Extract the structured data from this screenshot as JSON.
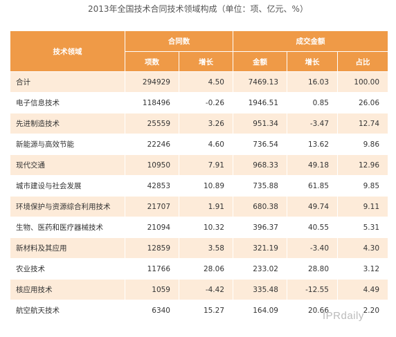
{
  "title": "2013年全国技术合同技术领域构成（单位：项、亿元、%）",
  "headers": {
    "field": "技术领域",
    "contracts_group": "合同数",
    "amount_group": "成交金额",
    "sub": [
      "项数",
      "增长",
      "金额",
      "增长",
      "占比"
    ]
  },
  "rows": [
    {
      "field": "合计",
      "count": "294929",
      "count_growth": "4.50",
      "amount": "7469.13",
      "amount_growth": "16.03",
      "share": "100.00"
    },
    {
      "field": "电子信息技术",
      "count": "118496",
      "count_growth": "-0.26",
      "amount": "1946.51",
      "amount_growth": "0.85",
      "share": "26.06"
    },
    {
      "field": "先进制造技术",
      "count": "25559",
      "count_growth": "3.26",
      "amount": "951.34",
      "amount_growth": "-3.47",
      "share": "12.74"
    },
    {
      "field": "新能源与高效节能",
      "count": "22246",
      "count_growth": "4.60",
      "amount": "736.54",
      "amount_growth": "13.62",
      "share": "9.86"
    },
    {
      "field": "现代交通",
      "count": "10950",
      "count_growth": "7.91",
      "amount": "968.33",
      "amount_growth": "49.18",
      "share": "12.96"
    },
    {
      "field": "城市建设与社会发展",
      "count": "42853",
      "count_growth": "10.89",
      "amount": "735.88",
      "amount_growth": "61.85",
      "share": "9.85"
    },
    {
      "field": "环境保护与资源综合利用技术",
      "count": "21707",
      "count_growth": "1.91",
      "amount": "680.38",
      "amount_growth": "49.74",
      "share": "9.11"
    },
    {
      "field": "生物、医药和医疗器械技术",
      "count": "21094",
      "count_growth": "10.32",
      "amount": "396.37",
      "amount_growth": "40.55",
      "share": "5.31"
    },
    {
      "field": "新材料及其应用",
      "count": "12859",
      "count_growth": "3.58",
      "amount": "321.19",
      "amount_growth": "-3.40",
      "share": "4.30"
    },
    {
      "field": "农业技术",
      "count": "11766",
      "count_growth": "28.06",
      "amount": "233.02",
      "amount_growth": "28.80",
      "share": "3.12"
    },
    {
      "field": "核应用技术",
      "count": "1059",
      "count_growth": "-4.42",
      "amount": "335.48",
      "amount_growth": "-12.55",
      "share": "4.49"
    },
    {
      "field": "航空航天技术",
      "count": "6340",
      "count_growth": "15.27",
      "amount": "164.09",
      "amount_growth": "20.66",
      "share": "2.20"
    }
  ],
  "watermark": "IPRdaily",
  "colors": {
    "header": "#ef9a47",
    "band": "#fdebd9"
  }
}
